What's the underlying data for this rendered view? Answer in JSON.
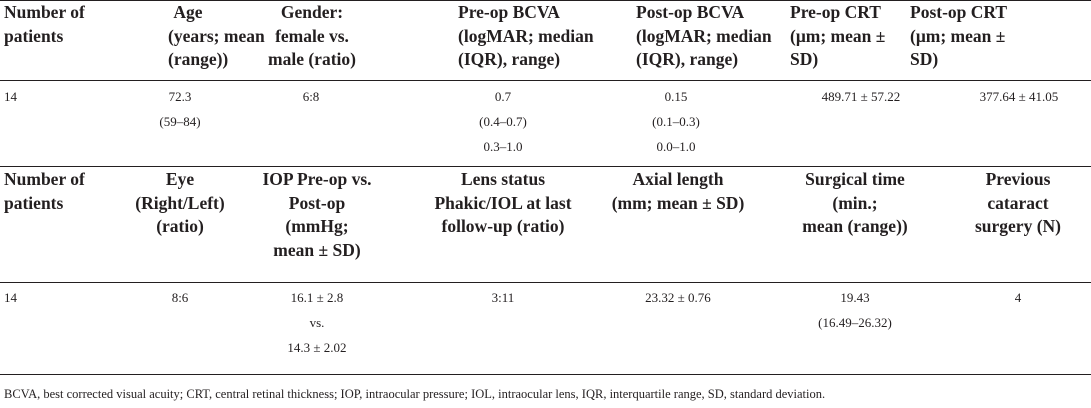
{
  "table1": {
    "headers": [
      [
        "Number of",
        "patients"
      ],
      [
        "Age",
        "(years; mean",
        "(range))"
      ],
      [
        "Gender:",
        "female vs.",
        "male (ratio)"
      ],
      [
        "Pre-op BCVA",
        "(logMAR; median",
        "(IQR), range)"
      ],
      [
        "Post-op BCVA",
        "(logMAR; median",
        "(IQR), range)"
      ],
      [
        "Pre-op CRT",
        "(μm; mean ±",
        "SD)"
      ],
      [
        "Post-op CRT",
        "(μm; mean ±",
        "SD)"
      ]
    ],
    "row": [
      [
        "14"
      ],
      [
        "72.3",
        "(59–84)"
      ],
      [
        "6:8"
      ],
      [
        "0.7",
        "(0.4–0.7)",
        "0.3–1.0"
      ],
      [
        "0.15",
        "(0.1–0.3)",
        "0.0–1.0"
      ],
      [
        "489.71 ± 57.22"
      ],
      [
        "377.64 ± 41.05"
      ]
    ]
  },
  "table2": {
    "headers": [
      [
        "Number of",
        "patients"
      ],
      [
        "Eye",
        "(Right/Left)",
        "(ratio)"
      ],
      [
        "IOP Pre-op vs.",
        "Post-op",
        "(mmHg;",
        "mean ± SD)"
      ],
      [
        "Lens status",
        "Phakic/IOL at last",
        "follow-up (ratio)"
      ],
      [
        "Axial length",
        "(mm; mean ± SD)"
      ],
      [
        "Surgical time",
        "(min.;",
        "mean (range))"
      ],
      [
        "Previous",
        "cataract",
        "surgery (N)"
      ]
    ],
    "row": [
      [
        "14"
      ],
      [
        "8:6"
      ],
      [
        "16.1 ± 2.8",
        "vs.",
        "14.3 ± 2.02"
      ],
      [
        "3:11"
      ],
      [
        "23.32 ± 0.76"
      ],
      [
        "19.43",
        "(16.49–26.32)"
      ],
      [
        "4"
      ]
    ]
  },
  "footnote": "BCVA, best corrected visual acuity; CRT, central retinal thickness; IOP, intraocular pressure; IOL, intraocular lens, IQR, interquartile range, SD, standard deviation."
}
